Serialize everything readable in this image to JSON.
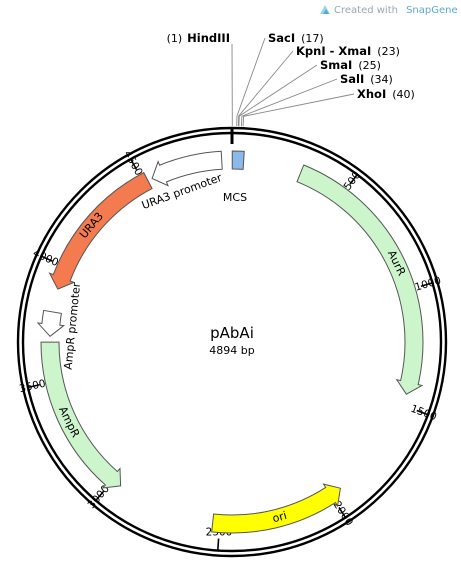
{
  "credit": {
    "text": "Created with",
    "brand": "SnapGene",
    "mark": "®",
    "icon": "snapgene-logo-icon"
  },
  "plasmid": {
    "name": "pAbAi",
    "size_label": "4894 bp",
    "length": 4894
  },
  "sites": [
    {
      "pos": "(1)",
      "name": "HindIII",
      "bp": 1,
      "side": "left"
    },
    {
      "pos": "(17)",
      "name": "SacI",
      "bp": 17,
      "side": "right"
    },
    {
      "pos": "(23)",
      "name": "KpnI - XmaI",
      "bp": 23,
      "side": "right"
    },
    {
      "pos": "(25)",
      "name": "SmaI",
      "bp": 25,
      "side": "right"
    },
    {
      "pos": "(34)",
      "name": "SalI",
      "bp": 34,
      "side": "right"
    },
    {
      "pos": "(40)",
      "name": "XhoI",
      "bp": 40,
      "side": "right"
    }
  ],
  "ticks": [
    {
      "bp": 500,
      "label": "500"
    },
    {
      "bp": 1000,
      "label": "1000"
    },
    {
      "bp": 1500,
      "label": "1500"
    },
    {
      "bp": 2000,
      "label": "2000"
    },
    {
      "bp": 2500,
      "label": "2500"
    },
    {
      "bp": 3000,
      "label": "3000"
    },
    {
      "bp": 3500,
      "label": "3500"
    },
    {
      "bp": 4000,
      "label": "4000"
    },
    {
      "bp": 4500,
      "label": "4500"
    }
  ],
  "features": [
    {
      "name": "MCS",
      "start": 1,
      "end": 50,
      "direction": "none",
      "color": "#8fb8ea"
    },
    {
      "name": "AurR",
      "start": 300,
      "end": 1450,
      "direction": "forward",
      "color": "#ccf5cc"
    },
    {
      "name": "ori",
      "start": 1950,
      "end": 2530,
      "direction": "reverse",
      "color": "#ffff00"
    },
    {
      "name": "AmpR",
      "start": 2960,
      "end": 3670,
      "direction": "reverse",
      "color": "#ccf5cc"
    },
    {
      "name": "AmpR promoter",
      "start": 3695,
      "end": 3800,
      "direction": "reverse",
      "color": "#ffffff"
    },
    {
      "name": "URA3",
      "start": 3900,
      "end": 4520,
      "direction": "reverse",
      "color": "#f47b4f"
    },
    {
      "name": "URA3 promoter",
      "start": 4540,
      "end": 4850,
      "direction": "reverse",
      "color": "#ffffff"
    }
  ]
}
